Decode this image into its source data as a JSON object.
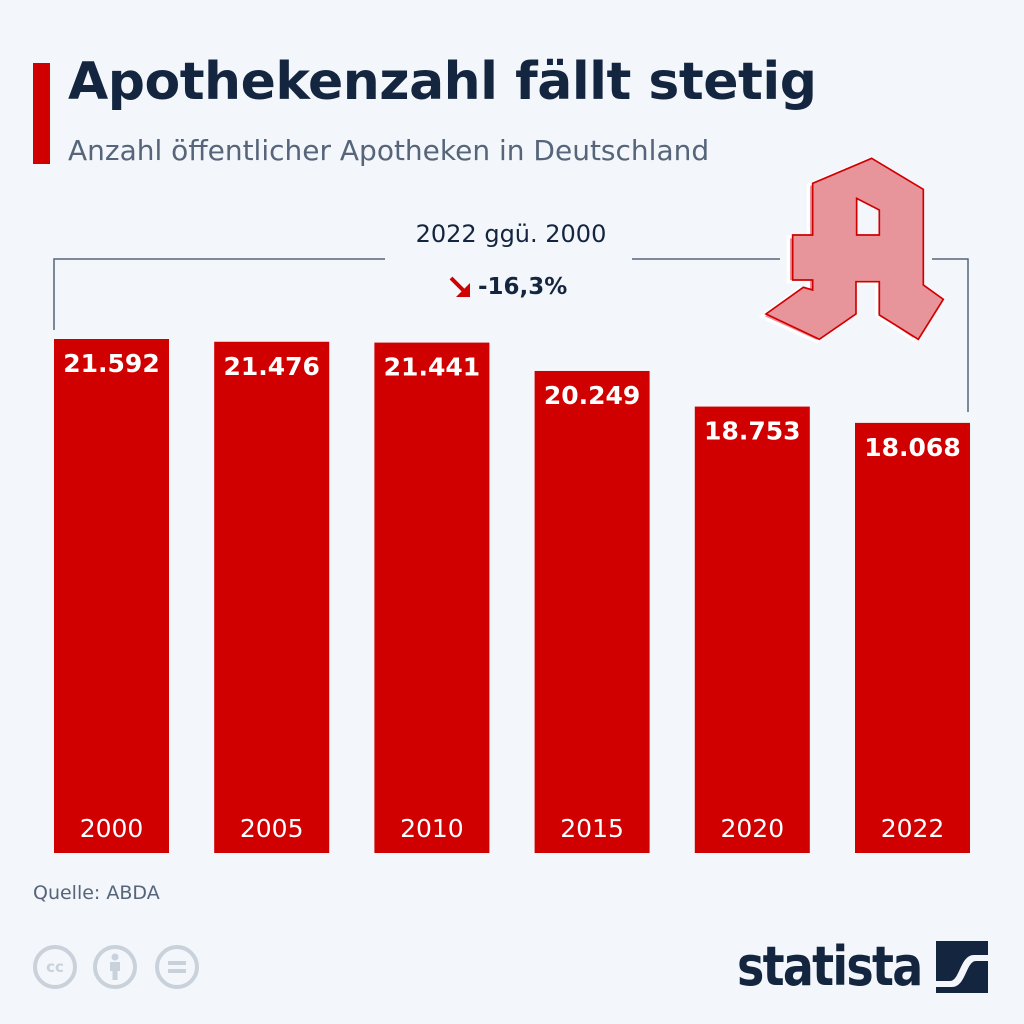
{
  "header": {
    "title": "Apothekenzahl fällt stetig",
    "subtitle": "Anzahl öffentlicher Apotheken in Deutschland"
  },
  "chart_data": {
    "type": "bar",
    "title": "Apothekenzahl fällt stetig",
    "subtitle": "Anzahl öffentlicher Apotheken in Deutschland",
    "categories": [
      "2000",
      "2005",
      "2010",
      "2015",
      "2020",
      "2022"
    ],
    "values": [
      21592,
      21476,
      21441,
      20249,
      18753,
      18068
    ],
    "value_labels": [
      "21.592",
      "21.476",
      "21.441",
      "20.249",
      "18.753",
      "18.068"
    ],
    "ylim": [
      0,
      21592
    ],
    "bar_color": "#d10000",
    "annotation": {
      "label": "2022 ggü. 2000",
      "change": "-16,3%",
      "direction": "down"
    }
  },
  "footer": {
    "source": "Quelle: ABDA",
    "license_icons": [
      "cc-icon",
      "by-icon",
      "nd-icon"
    ],
    "cc_text": "cc",
    "logo": "statista"
  }
}
